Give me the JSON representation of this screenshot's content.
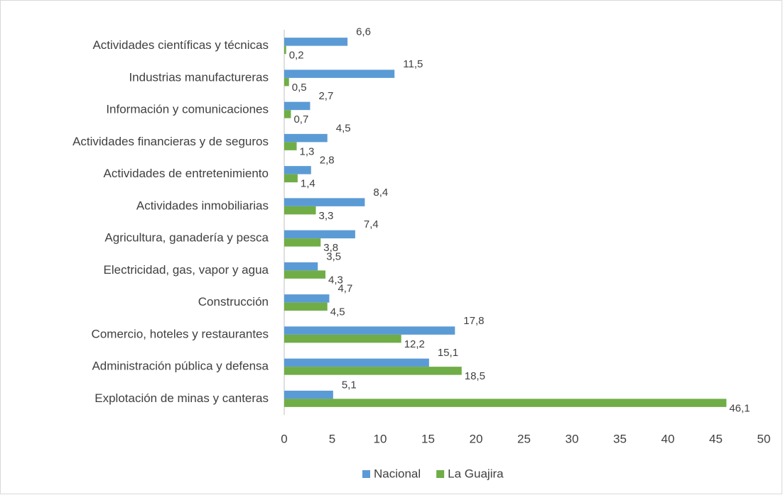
{
  "chart_data": {
    "type": "bar",
    "orientation": "horizontal",
    "categories": [
      "Actividades científicas y técnicas",
      "Industrias manufactureras",
      "Información y comunicaciones",
      "Actividades financieras y de seguros",
      "Actividades de entretenimiento ",
      "Actividades inmobiliarias",
      "Agricultura, ganadería y pesca",
      "Electricidad, gas, vapor y agua",
      "Construcción",
      "Comercio, hoteles y restaurantes",
      "Administración pública y defensa",
      "Explotación de minas y canteras"
    ],
    "series": [
      {
        "name": "Nacional",
        "color": "#5b9bd5",
        "values": [
          6.6,
          11.5,
          2.7,
          4.5,
          2.8,
          8.4,
          7.4,
          3.5,
          4.7,
          17.8,
          15.1,
          5.1
        ],
        "value_labels": [
          "6,6",
          "11,5",
          "2,7",
          "4,5",
          "2,8",
          "8,4",
          "7,4",
          "3,5",
          "4,7",
          "17,8",
          "15,1",
          "5,1"
        ]
      },
      {
        "name": "La Guajira",
        "color": "#70ad47",
        "values": [
          0.2,
          0.5,
          0.7,
          1.3,
          1.4,
          3.3,
          3.8,
          4.3,
          4.5,
          12.2,
          18.5,
          46.1
        ],
        "value_labels": [
          "0,2",
          "0,5",
          "0,7",
          "1,3",
          "1,4",
          "3,3",
          "3,8",
          "4,3",
          "4,5",
          "12,2",
          "18,5",
          "46,1"
        ]
      }
    ],
    "xlim": [
      0,
      50
    ],
    "xticks": [
      0,
      5,
      10,
      15,
      20,
      25,
      30,
      35,
      40,
      45,
      50
    ],
    "legend": "bottom"
  }
}
